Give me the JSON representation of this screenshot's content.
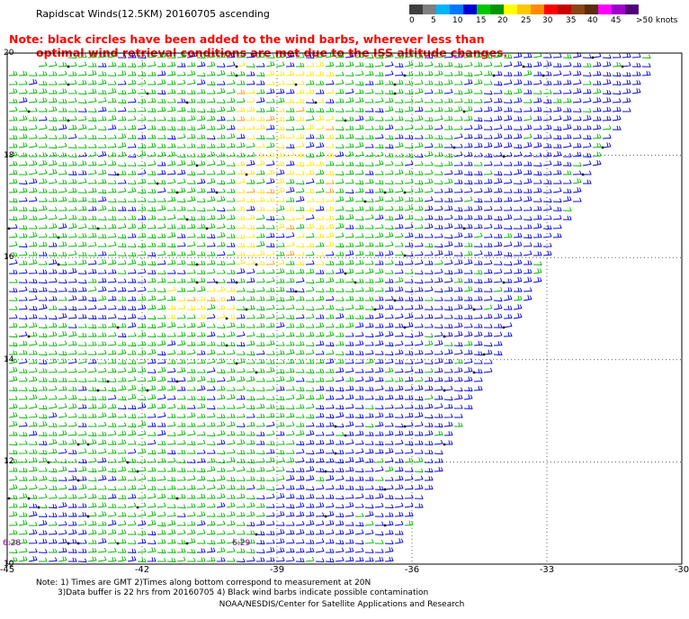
{
  "title": "Rapidscat Winds(12.5KM) 20160705 ascending",
  "note": {
    "line1": "Note: black circles have been added to the wind barbs, wherever less than",
    "line2": "optimal wind retrieval conditions are met due to the ISS altitude changes."
  },
  "legend": {
    "colors": [
      "#3f3f3f",
      "#7f7f7f",
      "#00b4ff",
      "#0078ff",
      "#0000d2",
      "#00c800",
      "#009600",
      "#ffff00",
      "#ffc800",
      "#ff8c00",
      "#ff0000",
      "#c80000",
      "#8b4513",
      "#5a2d0c",
      "#ff00ff",
      "#a000c8",
      "#500078"
    ],
    "labels": [
      "0",
      "5",
      "10",
      "15",
      "20",
      "25",
      "30",
      "35",
      "40",
      "45",
      ">50 knots"
    ]
  },
  "axes": {
    "x_ticks": [
      "-45",
      "-42",
      "-39",
      "-36",
      "-33",
      "-30"
    ],
    "y_ticks": [
      "20",
      "18",
      "16",
      "14",
      "12",
      "10"
    ]
  },
  "times": [
    "6:28",
    "6:29"
  ],
  "footer": {
    "line1": "Note: 1) Times are GMT 2)Times along bottom correspond to measurement at 20N",
    "line2": "3)Data buffer is 22 hrs from 20160705 4) Black wind barbs indicate possible contamination",
    "credit": "NOAA/NESDIS/Center for Satellite Applications and Research"
  },
  "map": {
    "lon_range": [
      -45,
      -30
    ],
    "lat_range": [
      10,
      20
    ],
    "barb_colors": {
      "blue": "#0000d2",
      "green": "#00b400",
      "yellow": "#ffe600",
      "orange": "#ff9600",
      "black": "#000000"
    }
  }
}
